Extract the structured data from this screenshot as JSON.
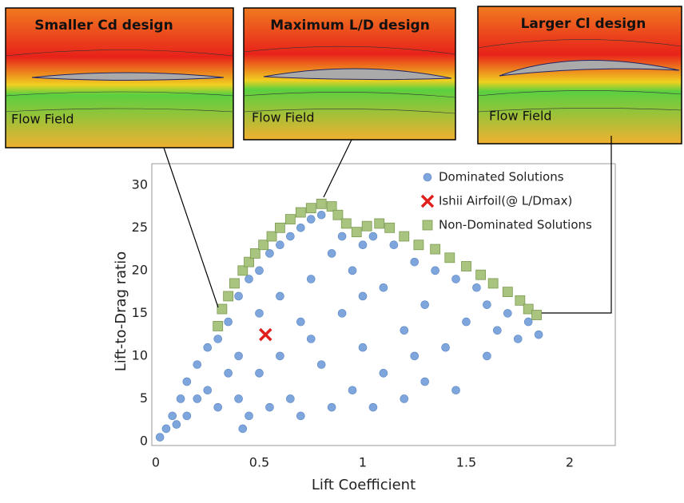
{
  "panels": [
    {
      "title": "Smaller Cd design",
      "label": "Flow Field"
    },
    {
      "title": "Maximum L/D design",
      "label": "Flow Field"
    },
    {
      "title": "Larger Cl design",
      "label": "Flow Field"
    }
  ],
  "chart_data": {
    "type": "scatter",
    "xlabel": "Lift Coefficient",
    "ylabel": "Lift-to-Drag ratio",
    "xlim": [
      0,
      2.2
    ],
    "ylim": [
      0,
      32.5
    ],
    "xticks": [
      0,
      0.5,
      1,
      1.5,
      2
    ],
    "yticks": [
      0,
      5,
      10,
      15,
      20,
      25,
      30
    ],
    "legend": "top-right",
    "series": [
      {
        "name": "Dominated Solutions",
        "color": "#7ea6dc",
        "marker": "circle",
        "x": [
          0.02,
          0.05,
          0.08,
          0.1,
          0.12,
          0.15,
          0.15,
          0.2,
          0.2,
          0.25,
          0.25,
          0.3,
          0.3,
          0.35,
          0.35,
          0.4,
          0.4,
          0.4,
          0.45,
          0.45,
          0.5,
          0.5,
          0.5,
          0.55,
          0.55,
          0.6,
          0.6,
          0.6,
          0.65,
          0.65,
          0.7,
          0.7,
          0.7,
          0.75,
          0.75,
          0.8,
          0.8,
          0.85,
          0.85,
          0.9,
          0.9,
          0.95,
          0.95,
          1.0,
          1.0,
          1.05,
          1.05,
          1.1,
          1.1,
          1.15,
          1.2,
          1.2,
          1.25,
          1.3,
          1.3,
          1.35,
          1.4,
          1.45,
          1.45,
          1.5,
          1.55,
          1.6,
          1.6,
          1.65,
          1.7,
          1.75,
          1.8,
          1.85,
          0.42,
          0.75,
          1.0,
          1.25
        ],
        "y": [
          0.5,
          1.5,
          3,
          2,
          5,
          7,
          3,
          9,
          5,
          11,
          6,
          12,
          4,
          14,
          8,
          17,
          10,
          5,
          19,
          3,
          20,
          15,
          8,
          22,
          4,
          23,
          17,
          10,
          24,
          5,
          25,
          14,
          3,
          26,
          19,
          26.5,
          9,
          22,
          4,
          24,
          15,
          20,
          6,
          23,
          11,
          24,
          4,
          18,
          8,
          23,
          13,
          5,
          21,
          16,
          7,
          20,
          11,
          19,
          6,
          14,
          18,
          10,
          16,
          13,
          15,
          12,
          14,
          12.5,
          1.5,
          12,
          17,
          10
        ]
      },
      {
        "name": "Ishii Airfoil(@ L/Dmax)",
        "color": "#e0201c",
        "marker": "x",
        "x": [
          0.53
        ],
        "y": [
          12.5
        ]
      },
      {
        "name": "Non-Dominated Solutions",
        "color": "#a9c47f",
        "marker": "square",
        "x": [
          0.3,
          0.32,
          0.35,
          0.38,
          0.42,
          0.45,
          0.48,
          0.52,
          0.56,
          0.6,
          0.65,
          0.7,
          0.75,
          0.8,
          0.85,
          0.88,
          0.92,
          0.97,
          1.02,
          1.08,
          1.13,
          1.2,
          1.27,
          1.35,
          1.42,
          1.5,
          1.57,
          1.63,
          1.7,
          1.76,
          1.8,
          1.84
        ],
        "y": [
          13.5,
          15.5,
          17,
          18.5,
          20,
          21,
          22,
          23,
          24,
          25,
          26,
          26.8,
          27.3,
          27.8,
          27.5,
          26.5,
          25.5,
          24.5,
          25.2,
          25.5,
          25,
          24,
          23,
          22.5,
          21.5,
          20.5,
          19.5,
          18.5,
          17.5,
          16.5,
          15.5,
          14.8
        ]
      }
    ]
  }
}
